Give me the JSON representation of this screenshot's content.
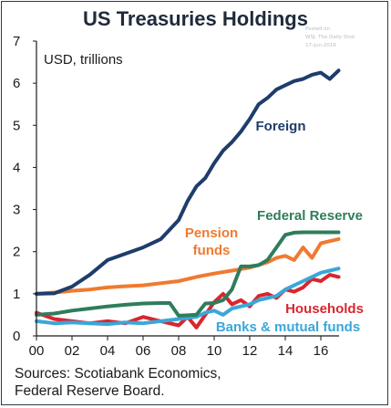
{
  "watermark": [
    "Posted on",
    "WSJ: The Daily Shot",
    "17-Jun-2016"
  ],
  "sources": [
    "Sources: Scotiabank Economics,",
    "Federal Reserve Board."
  ],
  "chart_data": {
    "type": "line",
    "title": "US Treasuries Holdings",
    "ylabel": "USD, trillions",
    "xlabel": "",
    "xlim": [
      2000,
      2017.3
    ],
    "ylim": [
      0,
      7
    ],
    "x_ticks": [
      2000,
      2002,
      2004,
      2006,
      2008,
      2010,
      2012,
      2014,
      2016
    ],
    "x_tick_labels": [
      "00",
      "02",
      "04",
      "06",
      "08",
      "10",
      "12",
      "14",
      "16"
    ],
    "y_ticks": [
      0,
      1,
      2,
      3,
      4,
      5,
      6,
      7
    ],
    "y_tick_labels": [
      "0",
      "1",
      "2",
      "3",
      "4",
      "5",
      "6",
      "7"
    ],
    "grid": false,
    "legend": "inline labels",
    "series": [
      {
        "name": "Foreign",
        "color": "#1f3d6b",
        "points": [
          [
            2000,
            1.0
          ],
          [
            2001,
            1.01
          ],
          [
            2002,
            1.17
          ],
          [
            2003,
            1.45
          ],
          [
            2004,
            1.8
          ],
          [
            2005,
            1.95
          ],
          [
            2006,
            2.1
          ],
          [
            2007,
            2.3
          ],
          [
            2008,
            2.75
          ],
          [
            2008.5,
            3.2
          ],
          [
            2009,
            3.55
          ],
          [
            2009.5,
            3.75
          ],
          [
            2010,
            4.1
          ],
          [
            2010.5,
            4.4
          ],
          [
            2011,
            4.6
          ],
          [
            2011.5,
            4.85
          ],
          [
            2012,
            5.15
          ],
          [
            2012.5,
            5.5
          ],
          [
            2013,
            5.65
          ],
          [
            2013.5,
            5.85
          ],
          [
            2014,
            5.95
          ],
          [
            2014.5,
            6.05
          ],
          [
            2015,
            6.1
          ],
          [
            2015.5,
            6.2
          ],
          [
            2016,
            6.25
          ],
          [
            2016.5,
            6.1
          ],
          [
            2017,
            6.3
          ]
        ]
      },
      {
        "name": "Federal Reserve",
        "color": "#2e7d5b",
        "points": [
          [
            2000,
            0.5
          ],
          [
            2001,
            0.53
          ],
          [
            2002,
            0.6
          ],
          [
            2003,
            0.65
          ],
          [
            2004,
            0.7
          ],
          [
            2005,
            0.74
          ],
          [
            2006,
            0.77
          ],
          [
            2007,
            0.78
          ],
          [
            2007.5,
            0.78
          ],
          [
            2008,
            0.48
          ],
          [
            2009,
            0.5
          ],
          [
            2009.5,
            0.77
          ],
          [
            2010,
            0.78
          ],
          [
            2010.5,
            0.85
          ],
          [
            2011,
            1.1
          ],
          [
            2011.5,
            1.65
          ],
          [
            2012,
            1.65
          ],
          [
            2012.5,
            1.68
          ],
          [
            2013,
            1.8
          ],
          [
            2013.5,
            2.1
          ],
          [
            2014,
            2.4
          ],
          [
            2014.5,
            2.45
          ],
          [
            2015,
            2.46
          ],
          [
            2016,
            2.46
          ],
          [
            2017,
            2.46
          ]
        ]
      },
      {
        "name": "Pension funds",
        "color": "#f07a30",
        "points": [
          [
            2000,
            1.0
          ],
          [
            2001,
            1.03
          ],
          [
            2002,
            1.07
          ],
          [
            2003,
            1.1
          ],
          [
            2004,
            1.15
          ],
          [
            2005,
            1.18
          ],
          [
            2006,
            1.2
          ],
          [
            2007,
            1.25
          ],
          [
            2008,
            1.3
          ],
          [
            2009,
            1.4
          ],
          [
            2010,
            1.48
          ],
          [
            2011,
            1.55
          ],
          [
            2012,
            1.62
          ],
          [
            2013,
            1.75
          ],
          [
            2013.5,
            1.85
          ],
          [
            2014,
            1.9
          ],
          [
            2014.5,
            1.8
          ],
          [
            2015,
            2.1
          ],
          [
            2015.5,
            1.85
          ],
          [
            2016,
            2.2
          ],
          [
            2016.5,
            2.25
          ],
          [
            2017,
            2.3
          ]
        ]
      },
      {
        "name": "Households",
        "color": "#d8262f",
        "points": [
          [
            2000,
            0.55
          ],
          [
            2001,
            0.4
          ],
          [
            2002,
            0.35
          ],
          [
            2003,
            0.3
          ],
          [
            2004,
            0.35
          ],
          [
            2005,
            0.3
          ],
          [
            2006,
            0.45
          ],
          [
            2007,
            0.35
          ],
          [
            2008,
            0.25
          ],
          [
            2008.5,
            0.45
          ],
          [
            2009,
            0.2
          ],
          [
            2009.5,
            0.5
          ],
          [
            2010,
            0.8
          ],
          [
            2010.5,
            1.0
          ],
          [
            2011,
            0.75
          ],
          [
            2011.5,
            0.85
          ],
          [
            2012,
            0.7
          ],
          [
            2012.5,
            0.95
          ],
          [
            2013,
            1.0
          ],
          [
            2013.5,
            0.9
          ],
          [
            2014,
            1.1
          ],
          [
            2014.5,
            1.05
          ],
          [
            2015,
            1.15
          ],
          [
            2015.5,
            1.35
          ],
          [
            2016,
            1.3
          ],
          [
            2016.5,
            1.45
          ],
          [
            2017,
            1.4
          ]
        ]
      },
      {
        "name": "Banks & mutual funds",
        "color": "#3aa7d9",
        "points": [
          [
            2000,
            0.35
          ],
          [
            2001,
            0.3
          ],
          [
            2002,
            0.32
          ],
          [
            2003,
            0.3
          ],
          [
            2004,
            0.28
          ],
          [
            2005,
            0.32
          ],
          [
            2006,
            0.3
          ],
          [
            2007,
            0.35
          ],
          [
            2008,
            0.4
          ],
          [
            2009,
            0.45
          ],
          [
            2009.5,
            0.55
          ],
          [
            2010,
            0.6
          ],
          [
            2010.5,
            0.5
          ],
          [
            2011,
            0.65
          ],
          [
            2011.5,
            0.7
          ],
          [
            2012,
            0.75
          ],
          [
            2012.5,
            0.85
          ],
          [
            2013,
            0.9
          ],
          [
            2013.5,
            0.95
          ],
          [
            2014,
            1.1
          ],
          [
            2014.5,
            1.2
          ],
          [
            2015,
            1.3
          ],
          [
            2015.5,
            1.4
          ],
          [
            2016,
            1.5
          ],
          [
            2016.5,
            1.55
          ],
          [
            2017,
            1.6
          ]
        ]
      }
    ]
  }
}
